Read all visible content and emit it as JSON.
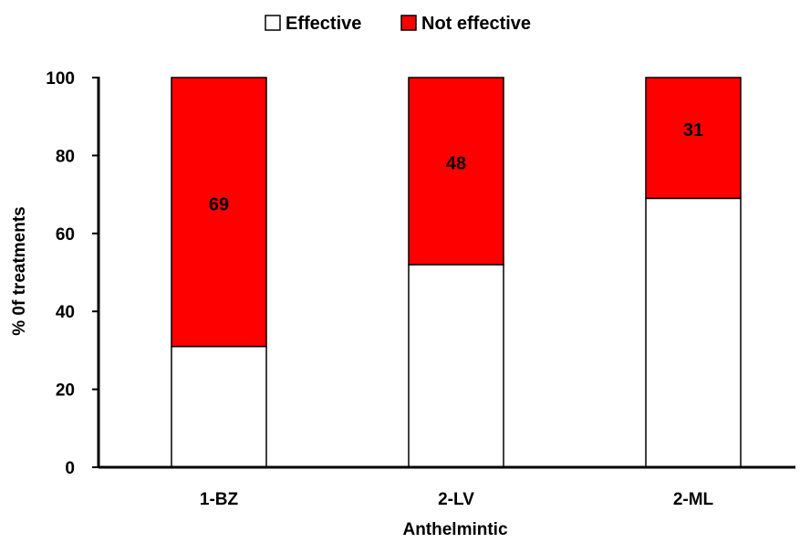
{
  "chart_data": {
    "type": "bar",
    "stacked": true,
    "categories": [
      "1-BZ",
      "2-LV",
      "2-ML"
    ],
    "series": [
      {
        "name": "Effective",
        "values": [
          31,
          52,
          69
        ],
        "color": "#ffffff"
      },
      {
        "name": "Not effective",
        "values": [
          69,
          48,
          31
        ],
        "color": "#ff0000"
      }
    ],
    "data_labels": [
      "69",
      "48",
      "31"
    ],
    "xlabel": "Anthelmintic",
    "ylabel": "% 0f treatments",
    "ylim": [
      0,
      100
    ],
    "yticks": [
      0,
      20,
      40,
      60,
      80,
      100
    ],
    "grid": false,
    "legend": {
      "position": "top",
      "entries": [
        "Effective",
        "Not effective"
      ]
    }
  }
}
